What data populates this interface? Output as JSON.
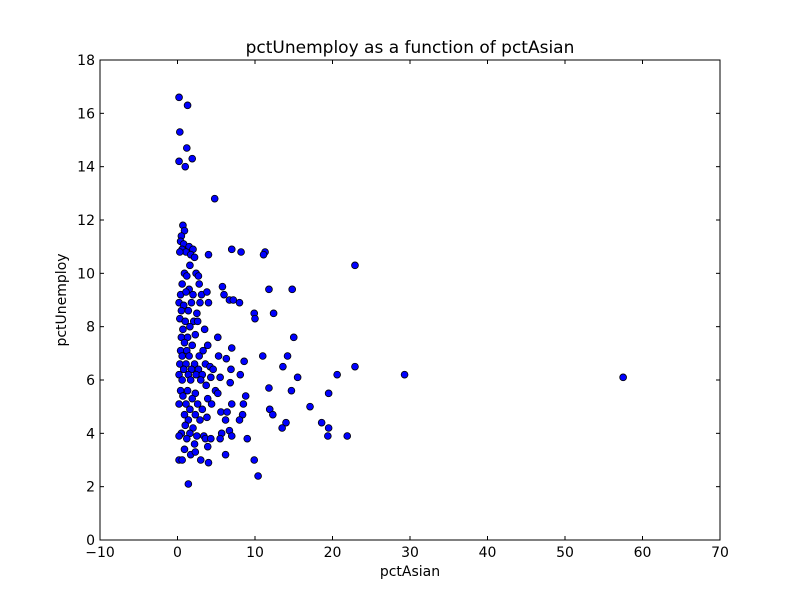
{
  "chart_data": {
    "type": "scatter",
    "title": "pctUnemploy as a function of pctAsian",
    "xlabel": "pctAsian",
    "ylabel": "pctUnemploy",
    "xlim": [
      -10,
      70
    ],
    "ylim": [
      0,
      18
    ],
    "xticks": [
      -10,
      0,
      10,
      20,
      30,
      40,
      50,
      60,
      70
    ],
    "yticks": [
      0,
      2,
      4,
      6,
      8,
      10,
      12,
      14,
      16,
      18
    ],
    "xtick_labels": [
      "−10",
      "0",
      "10",
      "20",
      "30",
      "40",
      "50",
      "60",
      "70"
    ],
    "ytick_labels": [
      "0",
      "2",
      "4",
      "6",
      "8",
      "10",
      "12",
      "14",
      "16",
      "18"
    ],
    "grid": false,
    "marker_color": "#0000ff",
    "marker_edge_color": "#000000",
    "points": [
      [
        0.2,
        16.6
      ],
      [
        1.3,
        16.3
      ],
      [
        0.3,
        15.3
      ],
      [
        1.2,
        14.7
      ],
      [
        0.2,
        14.2
      ],
      [
        1.9,
        14.3
      ],
      [
        1.0,
        14.0
      ],
      [
        4.8,
        12.8
      ],
      [
        0.7,
        11.8
      ],
      [
        0.9,
        11.6
      ],
      [
        0.5,
        11.4
      ],
      [
        0.4,
        11.2
      ],
      [
        0.8,
        11.1
      ],
      [
        1.5,
        11.0
      ],
      [
        0.6,
        10.9
      ],
      [
        2.0,
        10.9
      ],
      [
        1.1,
        10.8
      ],
      [
        1.7,
        10.7
      ],
      [
        0.3,
        10.8
      ],
      [
        2.2,
        10.6
      ],
      [
        4.0,
        10.7
      ],
      [
        7.0,
        10.9
      ],
      [
        8.2,
        10.8
      ],
      [
        11.3,
        10.8
      ],
      [
        11.1,
        10.7
      ],
      [
        22.9,
        10.3
      ],
      [
        1.6,
        10.3
      ],
      [
        0.9,
        10.0
      ],
      [
        2.4,
        10.0
      ],
      [
        1.2,
        9.9
      ],
      [
        2.7,
        9.9
      ],
      [
        0.6,
        9.6
      ],
      [
        2.8,
        9.6
      ],
      [
        5.8,
        9.5
      ],
      [
        1.5,
        9.4
      ],
      [
        11.8,
        9.4
      ],
      [
        14.8,
        9.4
      ],
      [
        0.4,
        9.2
      ],
      [
        1.1,
        9.3
      ],
      [
        2.0,
        9.2
      ],
      [
        3.1,
        9.2
      ],
      [
        3.8,
        9.3
      ],
      [
        6.0,
        9.2
      ],
      [
        6.7,
        9.0
      ],
      [
        7.2,
        9.0
      ],
      [
        0.2,
        8.9
      ],
      [
        0.8,
        8.8
      ],
      [
        1.8,
        8.9
      ],
      [
        2.9,
        8.9
      ],
      [
        4.0,
        8.9
      ],
      [
        8.0,
        8.9
      ],
      [
        0.5,
        8.6
      ],
      [
        1.4,
        8.6
      ],
      [
        2.5,
        8.5
      ],
      [
        9.9,
        8.5
      ],
      [
        12.4,
        8.5
      ],
      [
        10.0,
        8.3
      ],
      [
        0.3,
        8.3
      ],
      [
        1.0,
        8.2
      ],
      [
        2.1,
        8.2
      ],
      [
        0.7,
        7.9
      ],
      [
        1.6,
        8.0
      ],
      [
        2.6,
        8.2
      ],
      [
        3.5,
        7.9
      ],
      [
        0.5,
        7.6
      ],
      [
        1.3,
        7.6
      ],
      [
        2.3,
        7.7
      ],
      [
        5.2,
        7.6
      ],
      [
        15.0,
        7.6
      ],
      [
        0.9,
        7.4
      ],
      [
        1.9,
        7.3
      ],
      [
        3.9,
        7.3
      ],
      [
        0.4,
        7.1
      ],
      [
        1.2,
        7.1
      ],
      [
        3.3,
        7.1
      ],
      [
        7.0,
        7.2
      ],
      [
        0.6,
        6.9
      ],
      [
        1.5,
        6.9
      ],
      [
        2.8,
        6.9
      ],
      [
        5.3,
        6.9
      ],
      [
        6.3,
        6.8
      ],
      [
        8.6,
        6.7
      ],
      [
        11.0,
        6.9
      ],
      [
        14.2,
        6.9
      ],
      [
        0.3,
        6.6
      ],
      [
        1.1,
        6.6
      ],
      [
        2.2,
        6.6
      ],
      [
        3.6,
        6.6
      ],
      [
        4.2,
        6.5
      ],
      [
        13.6,
        6.5
      ],
      [
        22.9,
        6.5
      ],
      [
        0.8,
        6.4
      ],
      [
        1.8,
        6.4
      ],
      [
        2.7,
        6.4
      ],
      [
        4.6,
        6.4
      ],
      [
        6.9,
        6.4
      ],
      [
        0.2,
        6.2
      ],
      [
        1.4,
        6.2
      ],
      [
        2.4,
        6.2
      ],
      [
        3.2,
        6.2
      ],
      [
        4.3,
        6.1
      ],
      [
        5.5,
        6.1
      ],
      [
        8.1,
        6.2
      ],
      [
        15.5,
        6.1
      ],
      [
        20.6,
        6.2
      ],
      [
        29.3,
        6.2
      ],
      [
        57.5,
        6.1
      ],
      [
        0.6,
        6.0
      ],
      [
        1.7,
        6.0
      ],
      [
        3.0,
        6.0
      ],
      [
        3.7,
        5.8
      ],
      [
        6.8,
        5.9
      ],
      [
        11.8,
        5.7
      ],
      [
        14.7,
        5.6
      ],
      [
        0.4,
        5.6
      ],
      [
        1.3,
        5.6
      ],
      [
        2.3,
        5.5
      ],
      [
        4.9,
        5.6
      ],
      [
        5.2,
        5.5
      ],
      [
        19.5,
        5.5
      ],
      [
        0.7,
        5.4
      ],
      [
        1.9,
        5.3
      ],
      [
        3.9,
        5.3
      ],
      [
        8.8,
        5.4
      ],
      [
        0.2,
        5.1
      ],
      [
        1.1,
        5.1
      ],
      [
        2.6,
        5.1
      ],
      [
        4.4,
        5.1
      ],
      [
        7.0,
        5.1
      ],
      [
        8.5,
        5.1
      ],
      [
        1.6,
        4.9
      ],
      [
        3.2,
        4.9
      ],
      [
        5.6,
        4.8
      ],
      [
        6.4,
        4.8
      ],
      [
        11.9,
        4.9
      ],
      [
        17.1,
        5.0
      ],
      [
        0.9,
        4.7
      ],
      [
        2.3,
        4.7
      ],
      [
        3.8,
        4.6
      ],
      [
        8.4,
        4.7
      ],
      [
        12.3,
        4.7
      ],
      [
        1.4,
        4.5
      ],
      [
        2.9,
        4.5
      ],
      [
        6.2,
        4.5
      ],
      [
        8.0,
        4.5
      ],
      [
        18.6,
        4.4
      ],
      [
        14.0,
        4.4
      ],
      [
        1.0,
        4.3
      ],
      [
        2.0,
        4.2
      ],
      [
        6.7,
        4.1
      ],
      [
        13.5,
        4.2
      ],
      [
        19.5,
        4.2
      ],
      [
        0.5,
        4.0
      ],
      [
        1.6,
        4.0
      ],
      [
        2.5,
        3.9
      ],
      [
        3.4,
        3.9
      ],
      [
        5.7,
        4.0
      ],
      [
        7.0,
        3.9
      ],
      [
        9.0,
        3.8
      ],
      [
        19.4,
        3.9
      ],
      [
        21.9,
        3.9
      ],
      [
        0.2,
        3.9
      ],
      [
        1.2,
        3.8
      ],
      [
        3.6,
        3.8
      ],
      [
        4.3,
        3.8
      ],
      [
        5.5,
        3.8
      ],
      [
        2.2,
        3.6
      ],
      [
        3.9,
        3.5
      ],
      [
        0.9,
        3.4
      ],
      [
        1.7,
        3.2
      ],
      [
        2.3,
        3.3
      ],
      [
        6.2,
        3.2
      ],
      [
        9.9,
        3.0
      ],
      [
        0.2,
        3.0
      ],
      [
        0.6,
        3.0
      ],
      [
        3.0,
        3.0
      ],
      [
        4.0,
        2.9
      ],
      [
        10.4,
        2.4
      ],
      [
        1.4,
        2.1
      ]
    ]
  }
}
